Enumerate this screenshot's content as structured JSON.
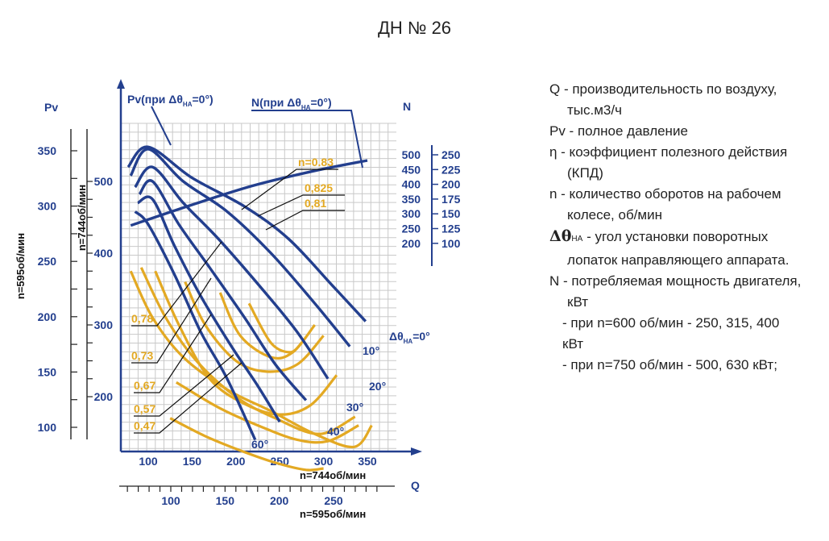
{
  "title": "ДН № 26",
  "legend": {
    "q_line1": "Q - производительность по воздуху,",
    "q_line2": "тыс.м3/ч",
    "pv": "Pv - полное давление",
    "eta_line1": "η - коэффициент полезного действия",
    "eta_line2": "(КПД)",
    "n_line1": "n - количество оборотов на рабочем",
    "n_line2": "колесе, об/мин",
    "dtheta_symbol": "Δθ",
    "dtheta_sub": "НА",
    "dtheta_line1": "- угол  установки поворотных",
    "dtheta_line2": "лопаток направляющего аппарата.",
    "N_line1": "N - потребляемая мощность двигателя,",
    "N_line2": "кВт",
    "N_line3": "- при n=600 об/мин - 250, 315, 400",
    "N_line4": "кВт",
    "N_line5": "- при n=750 об/мин - 500, 630 кВт;"
  },
  "chart_data": {
    "type": "line",
    "title": "ДН № 26",
    "x_axis_744": {
      "label": "n=744об/мин",
      "ticks": [
        "100",
        "150",
        "200",
        "250",
        "300",
        "350"
      ],
      "range": [
        75,
        370
      ]
    },
    "x_axis_595": {
      "label": "n=595об/мин",
      "ticks": [
        "100",
        "150",
        "200",
        "250"
      ],
      "range": [
        60,
        296
      ]
    },
    "x_name": "Q",
    "y_axis_595": {
      "label": "n=595об/мин",
      "name": "Pv",
      "ticks": [
        "100",
        "150",
        "200",
        "250",
        "300",
        "350"
      ],
      "range": [
        80,
        390
      ]
    },
    "y_axis_744": {
      "label": "n=744об/мин",
      "ticks": [
        "200",
        "300",
        "400",
        "500"
      ],
      "range": [
        125,
        610
      ]
    },
    "N_axis": {
      "name": "N",
      "ticks_744": [
        "500",
        "450",
        "400",
        "350",
        "300",
        "250",
        "200"
      ],
      "ticks_595": [
        "250",
        "225",
        "200",
        "175",
        "150",
        "125",
        "100"
      ]
    },
    "curve_labels": {
      "pv": "Pv(при Δθ",
      "n": "N(при Δθ",
      "sub": "НА",
      "tail": "=0°)"
    },
    "angle_label_main": "Δθ",
    "angle_label_sub": "НА",
    "angle_label_tail": "=0°",
    "angle_labels": [
      "10°",
      "20°",
      "30°",
      "40°",
      "60°"
    ],
    "efficiency_labels": [
      "n=0.83",
      "0,825",
      "0,81",
      "0,78",
      "0,73",
      "0,67",
      "0,57",
      "0,47"
    ],
    "pressure_curves_744": [
      {
        "name": "0°",
        "points": [
          [
            77,
            520
          ],
          [
            100,
            548
          ],
          [
            150,
            505
          ],
          [
            210,
            465
          ],
          [
            260,
            420
          ],
          [
            310,
            355
          ],
          [
            348,
            305
          ]
        ]
      },
      {
        "name": "10°",
        "points": [
          [
            80,
            508
          ],
          [
            100,
            545
          ],
          [
            140,
            500
          ],
          [
            190,
            458
          ],
          [
            240,
            400
          ],
          [
            290,
            330
          ],
          [
            330,
            270
          ]
        ]
      },
      {
        "name": "20°",
        "points": [
          [
            85,
            492
          ],
          [
            105,
            520
          ],
          [
            140,
            470
          ],
          [
            180,
            420
          ],
          [
            230,
            350
          ],
          [
            270,
            290
          ],
          [
            305,
            225
          ]
        ]
      },
      {
        "name": "30°",
        "points": [
          [
            90,
            482
          ],
          [
            105,
            500
          ],
          [
            135,
            440
          ],
          [
            170,
            380
          ],
          [
            210,
            310
          ],
          [
            245,
            245
          ],
          [
            280,
            195
          ]
        ]
      },
      {
        "name": "40°",
        "points": [
          [
            88,
            470
          ],
          [
            105,
            475
          ],
          [
            130,
            410
          ],
          [
            160,
            340
          ],
          [
            195,
            270
          ],
          [
            225,
            215
          ],
          [
            250,
            165
          ]
        ]
      },
      {
        "name": "60°",
        "points": [
          [
            85,
            458
          ],
          [
            100,
            440
          ],
          [
            130,
            370
          ],
          [
            160,
            290
          ],
          [
            190,
            225
          ],
          [
            222,
            140
          ]
        ]
      }
    ],
    "power_curve_744": {
      "points": [
        [
          80,
          250
        ],
        [
          150,
          320
        ],
        [
          220,
          385
        ],
        [
          290,
          435
        ],
        [
          350,
          470
        ]
      ]
    },
    "efficiency_curves": [
      {
        "label": "n=0.83",
        "points": [
          [
            215,
            330
          ],
          [
            240,
            275
          ],
          [
            262,
            262
          ],
          [
            275,
            275
          ]
        ]
      },
      {
        "label": "0,825",
        "points": [
          [
            182,
            345
          ],
          [
            205,
            285
          ],
          [
            240,
            255
          ],
          [
            265,
            262
          ],
          [
            290,
            300
          ]
        ]
      },
      {
        "label": "0,81",
        "points": [
          [
            142,
            360
          ],
          [
            165,
            300
          ],
          [
            200,
            250
          ],
          [
            235,
            235
          ],
          [
            270,
            245
          ],
          [
            300,
            285
          ]
        ]
      },
      {
        "label": "0,78",
        "points": [
          [
            108,
            375
          ],
          [
            135,
            300
          ],
          [
            170,
            225
          ],
          [
            210,
            190
          ],
          [
            250,
            175
          ],
          [
            285,
            188
          ],
          [
            315,
            230
          ]
        ]
      },
      {
        "label": "0,73",
        "points": [
          [
            92,
            380
          ],
          [
            120,
            310
          ],
          [
            155,
            250
          ],
          [
            200,
            200
          ],
          [
            245,
            170
          ],
          [
            295,
            148
          ],
          [
            336,
            172
          ]
        ]
      },
      {
        "label": "0,67",
        "points": [
          [
            80,
            375
          ],
          [
            105,
            310
          ],
          [
            140,
            255
          ],
          [
            190,
            210
          ],
          [
            240,
            180
          ],
          [
            290,
            148
          ],
          [
            335,
            130
          ],
          [
            355,
            160
          ]
        ]
      },
      {
        "label": "0,57",
        "points": [
          [
            132,
            220
          ],
          [
            180,
            185
          ],
          [
            225,
            160
          ],
          [
            270,
            140
          ],
          [
            305,
            138
          ],
          [
            340,
            160
          ]
        ]
      },
      {
        "label": "0,47",
        "points": [
          [
            125,
            170
          ],
          [
            165,
            145
          ],
          [
            205,
            125
          ],
          [
            245,
            108
          ],
          [
            280,
            98
          ],
          [
            300,
            100
          ]
        ]
      }
    ]
  }
}
